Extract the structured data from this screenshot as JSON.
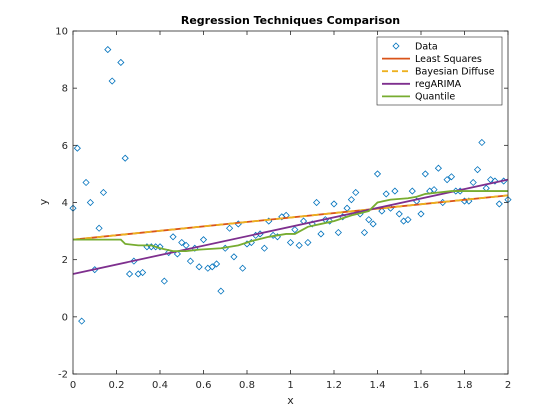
{
  "chart_data": {
    "type": "scatter",
    "title": "Regression Techniques Comparison",
    "xlabel": "x",
    "ylabel": "y",
    "xlim": [
      0,
      2
    ],
    "ylim": [
      -2,
      10
    ],
    "xticks": [
      0,
      0.2,
      0.4,
      0.6,
      0.8,
      1,
      1.2,
      1.4,
      1.6,
      1.8,
      2
    ],
    "xtick_labels": [
      "0",
      "0.2",
      "0.4",
      "0.6",
      "0.8",
      "1",
      "1.2",
      "1.4",
      "1.6",
      "1.8",
      "2"
    ],
    "yticks": [
      -2,
      0,
      2,
      4,
      6,
      8,
      10
    ],
    "ytick_labels": [
      "-2",
      "0",
      "2",
      "4",
      "6",
      "8",
      "10"
    ],
    "grid": false,
    "legend_position": "top-right",
    "series": [
      {
        "name": "Data",
        "kind": "scatter",
        "marker": "diamond",
        "color": "#0072BD",
        "points": [
          [
            0.0,
            3.8
          ],
          [
            0.02,
            5.9
          ],
          [
            0.04,
            -0.15
          ],
          [
            0.06,
            4.7
          ],
          [
            0.08,
            4.0
          ],
          [
            0.1,
            1.65
          ],
          [
            0.12,
            3.1
          ],
          [
            0.14,
            4.35
          ],
          [
            0.16,
            9.35
          ],
          [
            0.18,
            8.25
          ],
          [
            0.22,
            8.9
          ],
          [
            0.24,
            5.55
          ],
          [
            0.26,
            1.5
          ],
          [
            0.28,
            1.95
          ],
          [
            0.3,
            1.5
          ],
          [
            0.32,
            1.55
          ],
          [
            0.34,
            2.45
          ],
          [
            0.36,
            2.45
          ],
          [
            0.38,
            2.45
          ],
          [
            0.4,
            2.45
          ],
          [
            0.42,
            1.25
          ],
          [
            0.44,
            2.25
          ],
          [
            0.46,
            2.8
          ],
          [
            0.48,
            2.2
          ],
          [
            0.5,
            2.6
          ],
          [
            0.52,
            2.5
          ],
          [
            0.54,
            1.95
          ],
          [
            0.56,
            2.4
          ],
          [
            0.58,
            1.75
          ],
          [
            0.6,
            2.7
          ],
          [
            0.62,
            1.7
          ],
          [
            0.64,
            1.75
          ],
          [
            0.66,
            1.85
          ],
          [
            0.68,
            0.9
          ],
          [
            0.7,
            2.4
          ],
          [
            0.72,
            3.1
          ],
          [
            0.74,
            2.1
          ],
          [
            0.76,
            3.25
          ],
          [
            0.78,
            1.7
          ],
          [
            0.8,
            2.55
          ],
          [
            0.82,
            2.6
          ],
          [
            0.84,
            2.85
          ],
          [
            0.86,
            2.9
          ],
          [
            0.88,
            2.4
          ],
          [
            0.9,
            3.35
          ],
          [
            0.92,
            2.85
          ],
          [
            0.94,
            2.8
          ],
          [
            0.96,
            3.5
          ],
          [
            0.98,
            3.55
          ],
          [
            1.0,
            2.6
          ],
          [
            1.02,
            3.05
          ],
          [
            1.04,
            2.5
          ],
          [
            1.06,
            3.35
          ],
          [
            1.08,
            2.6
          ],
          [
            1.1,
            3.25
          ],
          [
            1.12,
            4.0
          ],
          [
            1.14,
            2.9
          ],
          [
            1.16,
            3.4
          ],
          [
            1.18,
            3.35
          ],
          [
            1.2,
            3.95
          ],
          [
            1.22,
            2.95
          ],
          [
            1.24,
            3.5
          ],
          [
            1.26,
            3.8
          ],
          [
            1.28,
            4.1
          ],
          [
            1.3,
            4.35
          ],
          [
            1.32,
            3.6
          ],
          [
            1.34,
            2.95
          ],
          [
            1.36,
            3.4
          ],
          [
            1.38,
            3.25
          ],
          [
            1.4,
            5.0
          ],
          [
            1.42,
            3.7
          ],
          [
            1.44,
            4.3
          ],
          [
            1.46,
            3.8
          ],
          [
            1.48,
            4.4
          ],
          [
            1.5,
            3.6
          ],
          [
            1.52,
            3.35
          ],
          [
            1.54,
            3.4
          ],
          [
            1.56,
            4.4
          ],
          [
            1.58,
            4.05
          ],
          [
            1.6,
            3.6
          ],
          [
            1.62,
            5.0
          ],
          [
            1.64,
            4.4
          ],
          [
            1.66,
            4.45
          ],
          [
            1.68,
            5.2
          ],
          [
            1.7,
            4.0
          ],
          [
            1.72,
            4.8
          ],
          [
            1.74,
            4.9
          ],
          [
            1.76,
            4.4
          ],
          [
            1.78,
            4.4
          ],
          [
            1.8,
            4.05
          ],
          [
            1.82,
            4.05
          ],
          [
            1.84,
            4.7
          ],
          [
            1.86,
            5.15
          ],
          [
            1.88,
            6.1
          ],
          [
            1.9,
            4.5
          ],
          [
            1.92,
            4.8
          ],
          [
            1.94,
            4.75
          ],
          [
            1.96,
            3.95
          ],
          [
            1.98,
            4.75
          ],
          [
            2.0,
            4.1
          ]
        ]
      },
      {
        "name": "Least Squares",
        "kind": "line",
        "color": "#D95319",
        "dash": "solid",
        "points": [
          [
            0,
            2.7
          ],
          [
            2,
            4.25
          ]
        ]
      },
      {
        "name": "Bayesian Diffuse",
        "kind": "line",
        "color": "#EDB120",
        "dash": "dashed",
        "points": [
          [
            0,
            2.7
          ],
          [
            2,
            4.25
          ]
        ]
      },
      {
        "name": "regARIMA",
        "kind": "line",
        "color": "#7E2F8E",
        "dash": "solid",
        "points": [
          [
            0,
            1.5
          ],
          [
            2,
            4.8
          ]
        ]
      },
      {
        "name": "Quantile",
        "kind": "line",
        "color": "#77AC30",
        "dash": "solid",
        "points": [
          [
            0.0,
            2.7
          ],
          [
            0.22,
            2.7
          ],
          [
            0.24,
            2.55
          ],
          [
            0.3,
            2.5
          ],
          [
            0.36,
            2.5
          ],
          [
            0.4,
            2.4
          ],
          [
            0.46,
            2.3
          ],
          [
            0.52,
            2.3
          ],
          [
            0.58,
            2.35
          ],
          [
            0.68,
            2.4
          ],
          [
            0.76,
            2.5
          ],
          [
            0.82,
            2.65
          ],
          [
            0.9,
            2.8
          ],
          [
            0.98,
            2.9
          ],
          [
            1.02,
            2.9
          ],
          [
            1.08,
            3.15
          ],
          [
            1.14,
            3.25
          ],
          [
            1.2,
            3.35
          ],
          [
            1.28,
            3.55
          ],
          [
            1.36,
            3.7
          ],
          [
            1.4,
            4.0
          ],
          [
            1.46,
            4.1
          ],
          [
            1.54,
            4.15
          ],
          [
            1.58,
            4.2
          ],
          [
            1.62,
            4.3
          ],
          [
            1.68,
            4.35
          ],
          [
            1.74,
            4.4
          ],
          [
            1.82,
            4.4
          ],
          [
            1.9,
            4.4
          ],
          [
            2.0,
            4.4
          ]
        ]
      }
    ]
  }
}
